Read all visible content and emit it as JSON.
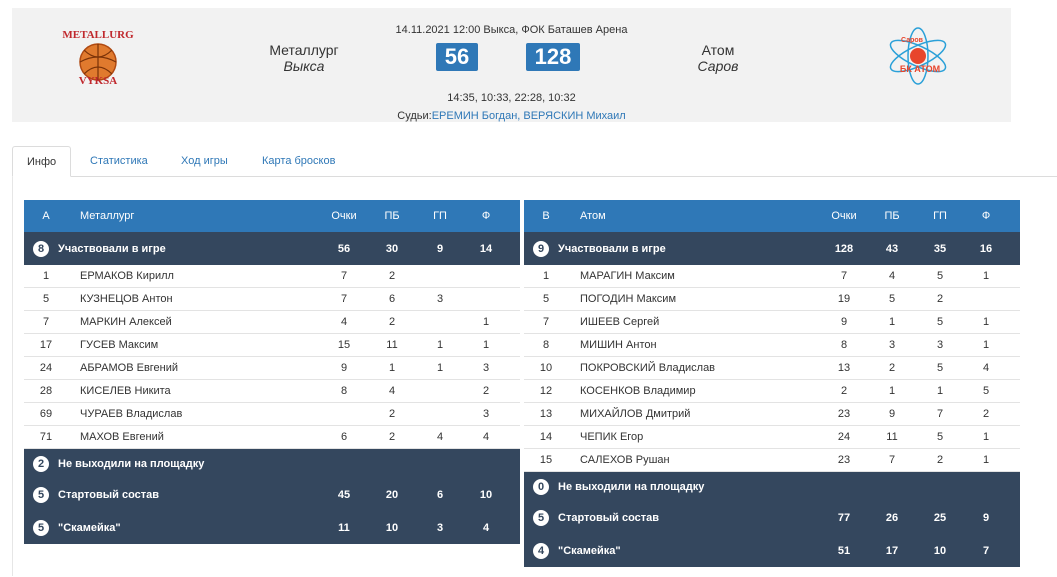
{
  "match": {
    "datetime_venue": "14.11.2021 12:00 Выкса, ФОК Баташев Арена",
    "home_team": "Металлург",
    "home_city": "Выкса",
    "away_team": "Атом",
    "away_city": "Саров",
    "home_score": "56",
    "away_score": "128",
    "times": "14:35, 10:33, 22:28, 10:32",
    "refs_label": "Судьи:",
    "refs_names": "ЕРЕМИН Богдан, ВЕРЯСКИН Михаил"
  },
  "logos": {
    "home_text_top": "METALLURG",
    "home_text_bottom": "VYKSA",
    "away_text_top": "Саров",
    "away_text_bottom": "БК АТОМ"
  },
  "tabs": [
    {
      "label": "Инфо"
    },
    {
      "label": "Статистика"
    },
    {
      "label": "Ход игры"
    },
    {
      "label": "Карта бросков"
    }
  ],
  "home_table": {
    "letter": "А",
    "team": "Металлург",
    "col_pts": "Очки",
    "col_pb": "ПБ",
    "col_gp": "ГП",
    "col_f": "Ф",
    "played": {
      "count": "8",
      "label": "Участвовали в игре",
      "pts": "56",
      "pb": "30",
      "gp": "9",
      "f": "14"
    },
    "players": [
      {
        "num": "1",
        "name": "ЕРМАКОВ Кирилл",
        "pts": "7",
        "pb": "2",
        "gp": "",
        "f": ""
      },
      {
        "num": "5",
        "name": "КУЗНЕЦОВ Антон",
        "pts": "7",
        "pb": "6",
        "gp": "3",
        "f": ""
      },
      {
        "num": "7",
        "name": "МАРКИН Алексей",
        "pts": "4",
        "pb": "2",
        "gp": "",
        "f": "1"
      },
      {
        "num": "17",
        "name": "ГУСЕВ Максим",
        "pts": "15",
        "pb": "11",
        "gp": "1",
        "f": "1"
      },
      {
        "num": "24",
        "name": "АБРАМОВ Евгений",
        "pts": "9",
        "pb": "1",
        "gp": "1",
        "f": "3"
      },
      {
        "num": "28",
        "name": "КИСЕЛЕВ Никита",
        "pts": "8",
        "pb": "4",
        "gp": "",
        "f": "2"
      },
      {
        "num": "69",
        "name": "ЧУРАЕВ Владислав",
        "pts": "",
        "pb": "2",
        "gp": "",
        "f": "3"
      },
      {
        "num": "71",
        "name": "МАХОВ Евгений",
        "pts": "6",
        "pb": "2",
        "gp": "4",
        "f": "4"
      }
    ],
    "dnp": {
      "count": "2",
      "label": "Не выходили на площадку"
    },
    "starters": {
      "count": "5",
      "label": "Стартовый состав",
      "pts": "45",
      "pb": "20",
      "gp": "6",
      "f": "10"
    },
    "bench": {
      "count": "5",
      "label": "\"Скамейка\"",
      "pts": "11",
      "pb": "10",
      "gp": "3",
      "f": "4"
    }
  },
  "away_table": {
    "letter": "В",
    "team": "Атом",
    "col_pts": "Очки",
    "col_pb": "ПБ",
    "col_gp": "ГП",
    "col_f": "Ф",
    "played": {
      "count": "9",
      "label": "Участвовали в игре",
      "pts": "128",
      "pb": "43",
      "gp": "35",
      "f": "16"
    },
    "players": [
      {
        "num": "1",
        "name": "МАРАГИН Максим",
        "pts": "7",
        "pb": "4",
        "gp": "5",
        "f": "1"
      },
      {
        "num": "5",
        "name": "ПОГОДИН Максим",
        "pts": "19",
        "pb": "5",
        "gp": "2",
        "f": ""
      },
      {
        "num": "7",
        "name": "ИШЕЕВ Сергей",
        "pts": "9",
        "pb": "1",
        "gp": "5",
        "f": "1"
      },
      {
        "num": "8",
        "name": "МИШИН Антон",
        "pts": "8",
        "pb": "3",
        "gp": "3",
        "f": "1"
      },
      {
        "num": "10",
        "name": "ПОКРОВСКИЙ Владислав",
        "pts": "13",
        "pb": "2",
        "gp": "5",
        "f": "4"
      },
      {
        "num": "12",
        "name": "КОСЕНКОВ Владимир",
        "pts": "2",
        "pb": "1",
        "gp": "1",
        "f": "5"
      },
      {
        "num": "13",
        "name": "МИХАЙЛОВ Дмитрий",
        "pts": "23",
        "pb": "9",
        "gp": "7",
        "f": "2"
      },
      {
        "num": "14",
        "name": "ЧЕПИК Егор",
        "pts": "24",
        "pb": "11",
        "gp": "5",
        "f": "1"
      },
      {
        "num": "15",
        "name": "САЛЕХОВ Рушан",
        "pts": "23",
        "pb": "7",
        "gp": "2",
        "f": "1"
      }
    ],
    "dnp": {
      "count": "0",
      "label": "Не выходили на площадку"
    },
    "starters": {
      "count": "5",
      "label": "Стартовый состав",
      "pts": "77",
      "pb": "26",
      "gp": "25",
      "f": "9"
    },
    "bench": {
      "count": "4",
      "label": "\"Скамейка\"",
      "pts": "51",
      "pb": "17",
      "gp": "10",
      "f": "7"
    }
  },
  "colors": {
    "accent_blue": "#2f78b7",
    "dark_row": "#34475e",
    "header_bg": "#f2f2f2"
  }
}
